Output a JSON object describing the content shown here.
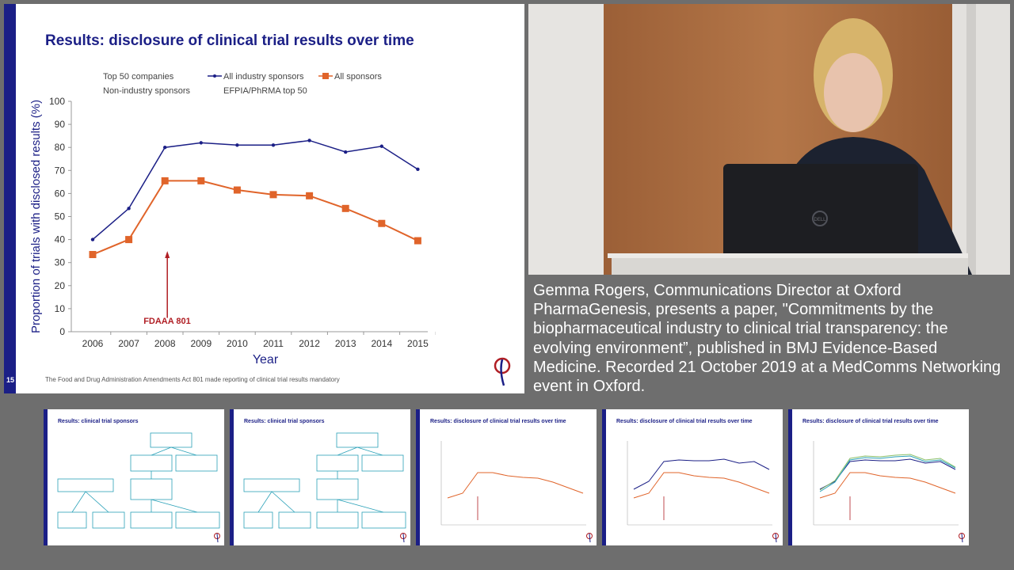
{
  "slide": {
    "number": "15",
    "title": "Results: disclosure of clinical trial results over time",
    "footnote": "The Food and Drug Administration Amendments Act 801 made reporting of clinical trial results mandatory",
    "legend": [
      {
        "label": "Top 50 companies",
        "marker": "none"
      },
      {
        "label": "All industry sponsors",
        "marker": "line-dot"
      },
      {
        "label": "All sponsors",
        "marker": "line-square"
      },
      {
        "label": "Non-industry sponsors",
        "marker": "none"
      },
      {
        "label": "EFPIA/PhRMA top 50",
        "marker": "none"
      }
    ],
    "annotation": "FDAAA 801",
    "colors": {
      "navy": "#1b1f86",
      "orange": "#e0642a",
      "red": "#b01e24"
    }
  },
  "chart_data": {
    "type": "line",
    "categories": [
      "2006",
      "2007",
      "2008",
      "2009",
      "2010",
      "2011",
      "2012",
      "2013",
      "2014",
      "2015"
    ],
    "series": [
      {
        "name": "All industry sponsors",
        "values": [
          40,
          53.5,
          80,
          82,
          81,
          81,
          83,
          78,
          80.5,
          70.5
        ]
      },
      {
        "name": "All sponsors",
        "values": [
          33.5,
          40,
          65.5,
          65.5,
          61.5,
          59.5,
          59,
          53.5,
          47,
          39.5
        ]
      }
    ],
    "xlabel": "Year",
    "ylabel": "Proportion of trials with disclosed results (%)",
    "ylim": [
      0,
      100
    ],
    "yticks": [
      0,
      10,
      20,
      30,
      40,
      50,
      60,
      70,
      80,
      90,
      100
    ],
    "annotation": {
      "label": "FDAAA 801",
      "x": "2008"
    }
  },
  "caption": "Gemma Rogers, Communications Director at Oxford PharmaGenesis, presents a paper, \"Commitments by the biopharmaceutical industry to clinical trial transparency: the evolving environment”, published in BMJ Evidence-Based Medicine. Recorded 21 October 2019 at a MedComms Networking event in Oxford.",
  "video": {
    "laptop_brand": "DELL"
  },
  "thumbnails": [
    {
      "title": "Results: clinical trial sponsors",
      "kind": "flow"
    },
    {
      "title": "Results: clinical trial sponsors",
      "kind": "flow"
    },
    {
      "title": "Results: disclosure of clinical trial results over time",
      "kind": "chart",
      "series": [
        "orange"
      ]
    },
    {
      "title": "Results: disclosure of clinical trial results over time",
      "kind": "chart",
      "series": [
        "navy",
        "orange"
      ]
    },
    {
      "title": "Results: disclosure of clinical trial results over time",
      "kind": "chart",
      "series": [
        "navy",
        "orange",
        "teal",
        "green"
      ]
    }
  ]
}
